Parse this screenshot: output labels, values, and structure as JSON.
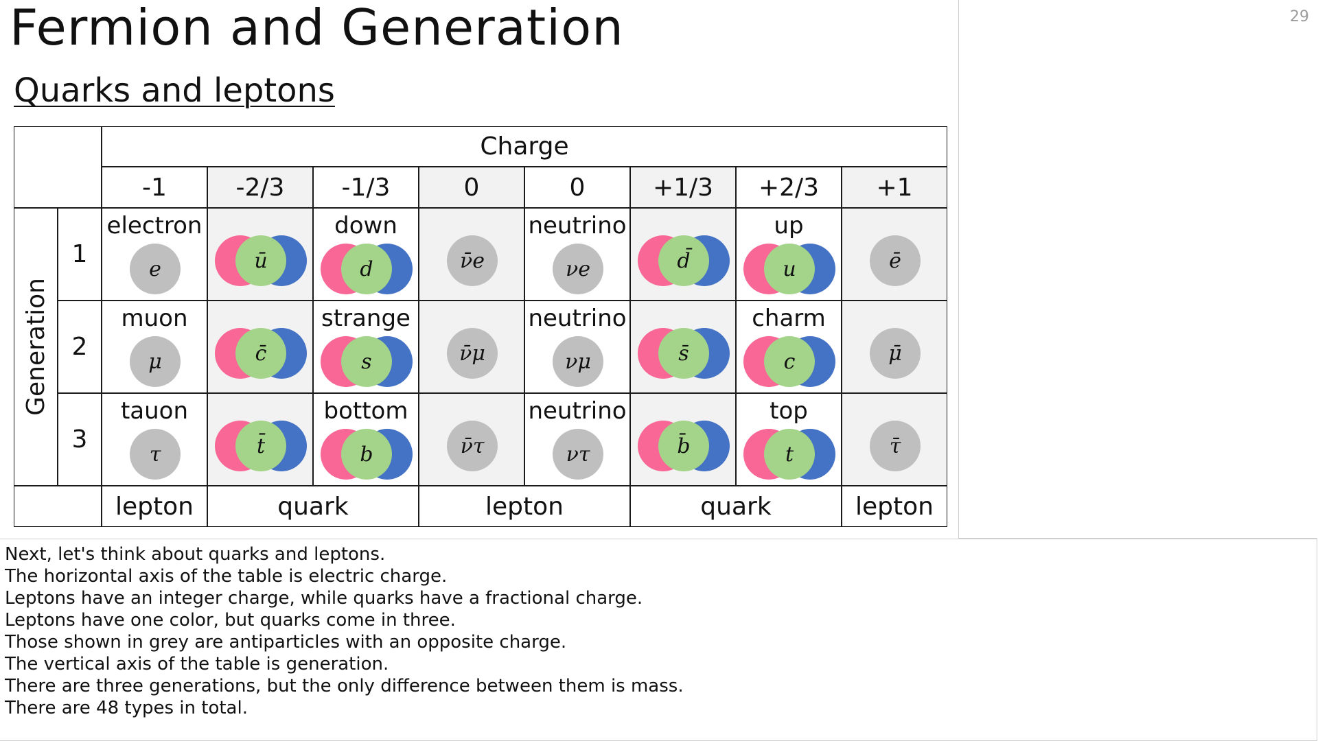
{
  "slide": {
    "title": "Fermion and Generation",
    "subtitle": "Quarks and leptons",
    "page_number": "29"
  },
  "table": {
    "charge_label": "Charge",
    "generation_label": "Generation",
    "charges": [
      "-1",
      "-2/3",
      "-1/3",
      "0",
      "0",
      "+1/3",
      "+2/3",
      "+1"
    ],
    "generations": [
      "1",
      "2",
      "3"
    ],
    "rows": [
      {
        "names": [
          "electron",
          "",
          "down",
          "",
          "neutrino",
          "",
          "up",
          ""
        ],
        "symbols": [
          "e",
          "ū",
          "d",
          "ν̄e",
          "νe",
          "d̄",
          "u",
          "ē"
        ]
      },
      {
        "names": [
          "muon",
          "",
          "strange",
          "",
          "neutrino",
          "",
          "charm",
          ""
        ],
        "symbols": [
          "μ",
          "c̄",
          "s",
          "ν̄μ",
          "νμ",
          "s̄",
          "c",
          "μ̄"
        ]
      },
      {
        "names": [
          "tauon",
          "",
          "bottom",
          "",
          "neutrino",
          "",
          "top",
          ""
        ],
        "symbols": [
          "τ",
          "t̄",
          "b",
          "ν̄τ",
          "ντ",
          "b̄",
          "t",
          "τ̄"
        ]
      }
    ],
    "footer": [
      "lepton",
      "quark",
      "lepton",
      "quark",
      "lepton"
    ],
    "colors": {
      "red": "#f86795",
      "blue": "#4472c4",
      "green": "#a4d48a",
      "grey": "#bfbfbf",
      "shade": "#f2f2f2"
    }
  },
  "notes": [
    "Next, let's think about quarks and leptons.",
    "The horizontal axis of the table is electric charge.",
    "Leptons have an integer charge, while quarks have a fractional charge.",
    "Leptons have one color, but quarks come in three.",
    "Those shown in grey are antiparticles with an opposite charge.",
    "The vertical axis of the table is generation.",
    "There are three generations, but the only difference between them is mass.",
    "There are 48 types in total."
  ]
}
